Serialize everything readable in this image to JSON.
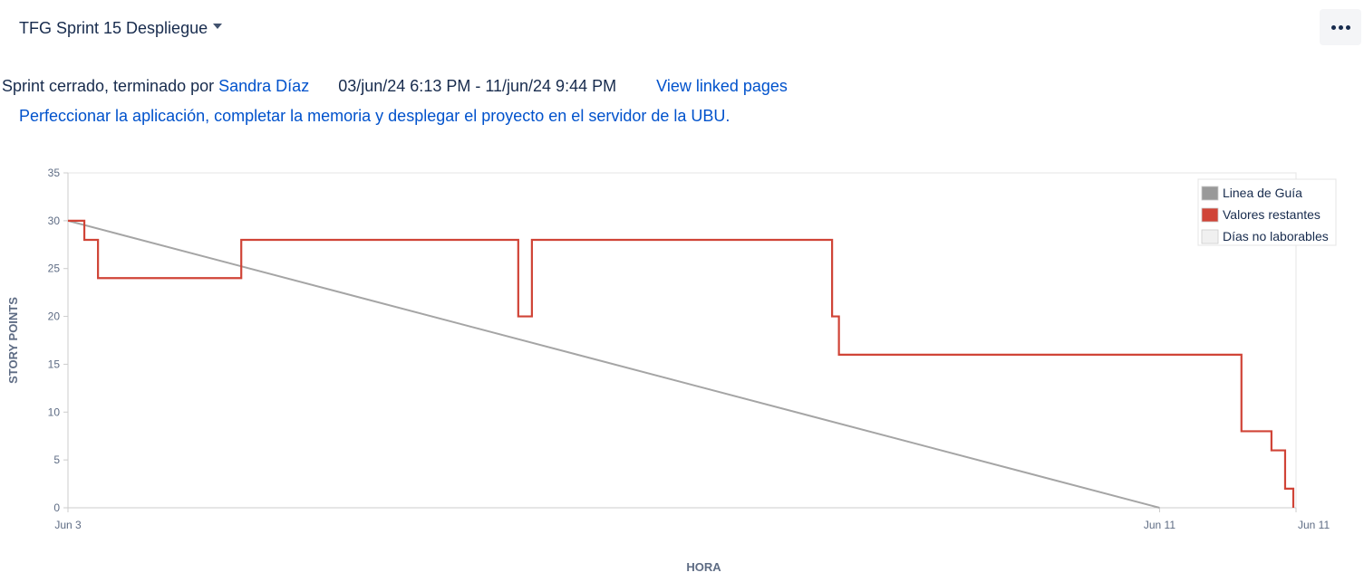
{
  "header": {
    "sprint_name": "TFG Sprint 15 Despliegue"
  },
  "info": {
    "status_text": "Sprint cerrado, terminado por",
    "user": "Sandra Díaz",
    "date_range": "03/jun/24 6:13 PM - 11/jun/24 9:44 PM",
    "linked_pages": "View linked pages"
  },
  "goal": "Perfeccionar la aplicación, completar la memoria y desplegar el proyecto en el servidor de la UBU.",
  "chart_data": {
    "type": "line",
    "ylabel": "STORY POINTS",
    "xlabel": "HORA",
    "ylim": [
      0,
      35
    ],
    "yticks": [
      0,
      5,
      10,
      15,
      20,
      25,
      30,
      35
    ],
    "x_unit": "days since Jun 3",
    "xlim": [
      0,
      9.0
    ],
    "xtick_labels": [
      {
        "x": 0,
        "label": "Jun 3"
      },
      {
        "x": 8.0,
        "label": "Jun 11"
      },
      {
        "x": 9.0,
        "label": "Jun 11"
      }
    ],
    "legend_position": "top-right",
    "legend": [
      {
        "label": "Linea de Guía",
        "color": "#999999"
      },
      {
        "label": "Valores restantes",
        "color": "#d04437"
      },
      {
        "label": "Días no laborables",
        "color": "#f0f0f0"
      }
    ],
    "series": [
      {
        "name": "Linea de Guía",
        "color": "#a5a5a5",
        "step": false,
        "points": [
          [
            0,
            30
          ],
          [
            8.0,
            0
          ]
        ]
      },
      {
        "name": "Valores restantes",
        "color": "#d04437",
        "step": true,
        "points": [
          [
            0,
            30
          ],
          [
            0.12,
            28
          ],
          [
            0.22,
            24
          ],
          [
            1.27,
            28
          ],
          [
            3.3,
            20
          ],
          [
            3.4,
            28
          ],
          [
            5.6,
            20
          ],
          [
            5.65,
            16
          ],
          [
            8.6,
            8
          ],
          [
            8.82,
            6
          ],
          [
            8.92,
            2
          ],
          [
            8.98,
            0
          ]
        ]
      }
    ]
  }
}
